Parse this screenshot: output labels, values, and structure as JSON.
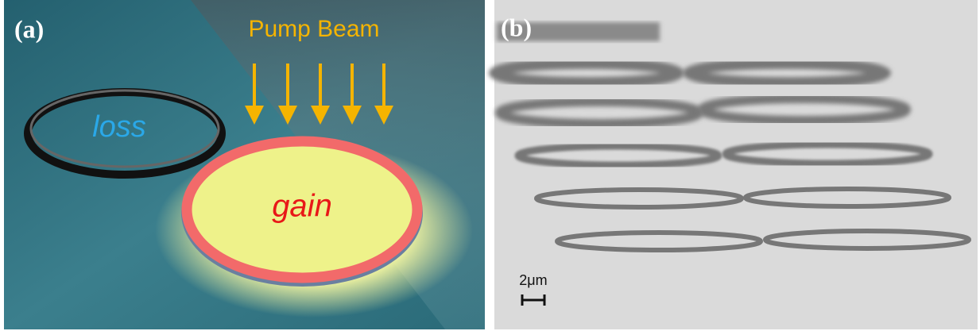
{
  "panels": [
    {
      "label": "(a)",
      "pump_label": "Pump Beam",
      "loss_label": "loss",
      "gain_label": "gain"
    },
    {
      "label": "(b)",
      "scale_label": "2μm"
    }
  ]
}
